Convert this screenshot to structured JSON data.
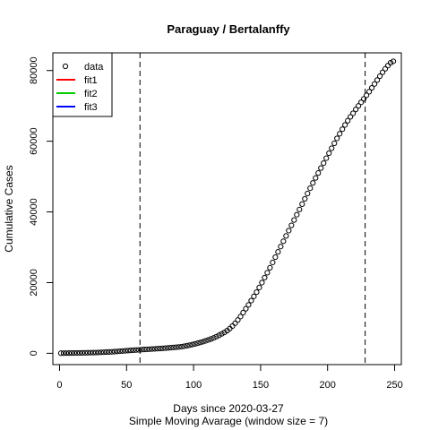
{
  "chart_data": {
    "type": "scatter",
    "title": "Paraguay / Bertalanffy",
    "xlabel": "Days since 2020-03-27",
    "subtitle": "Simple Moving Avarage (window size = 7)",
    "ylabel": "Cumulative Cases",
    "xlim": [
      -5,
      255
    ],
    "ylim": [
      -3200,
      85000
    ],
    "xticks": [
      0,
      50,
      100,
      150,
      200,
      250
    ],
    "yticks": [
      0,
      20000,
      40000,
      60000,
      80000
    ],
    "xtick_labels": [
      "0",
      "50",
      "100",
      "150",
      "200",
      "250"
    ],
    "ytick_labels": [
      "0",
      "20000",
      "40000",
      "60000",
      "80000"
    ],
    "vlines": [
      60,
      228
    ],
    "grid": false,
    "legend": {
      "position": "top-left",
      "entries": [
        {
          "label": "data",
          "symbol": "circle",
          "color": "#000000"
        },
        {
          "label": "fit1",
          "symbol": "line",
          "color": "#ff0000"
        },
        {
          "label": "fit2",
          "symbol": "line",
          "color": "#00cc00"
        },
        {
          "label": "fit3",
          "symbol": "line",
          "color": "#0000ff"
        }
      ]
    },
    "series": [
      {
        "name": "data",
        "x": [
          1,
          3,
          5,
          7,
          9,
          11,
          13,
          15,
          17,
          19,
          21,
          23,
          25,
          27,
          29,
          31,
          33,
          35,
          37,
          39,
          41,
          43,
          45,
          47,
          49,
          51,
          53,
          55,
          57,
          59,
          61,
          63,
          65,
          67,
          69,
          71,
          73,
          75,
          77,
          79,
          81,
          83,
          85,
          87,
          89,
          91,
          93,
          95,
          97,
          99,
          101,
          103,
          105,
          107,
          109,
          111,
          113,
          115,
          117,
          119,
          121,
          123,
          125,
          127,
          129,
          131,
          133,
          135,
          137,
          139,
          141,
          143,
          145,
          147,
          149,
          151,
          153,
          155,
          157,
          159,
          161,
          163,
          165,
          167,
          169,
          171,
          173,
          175,
          177,
          179,
          181,
          183,
          185,
          187,
          189,
          191,
          193,
          195,
          197,
          199,
          201,
          203,
          205,
          207,
          209,
          211,
          213,
          215,
          217,
          219,
          221,
          223,
          225,
          227,
          229,
          231,
          233,
          235,
          237,
          239,
          241,
          243,
          245,
          247,
          249
        ],
        "y": [
          30,
          40,
          50,
          60,
          80,
          90,
          100,
          110,
          120,
          130,
          150,
          170,
          190,
          210,
          240,
          270,
          300,
          340,
          380,
          420,
          470,
          520,
          580,
          640,
          700,
          760,
          820,
          870,
          920,
          970,
          1020,
          1070,
          1110,
          1160,
          1210,
          1250,
          1300,
          1350,
          1400,
          1460,
          1520,
          1590,
          1650,
          1720,
          1780,
          1880,
          2000,
          2150,
          2300,
          2470,
          2650,
          2850,
          3060,
          3280,
          3520,
          3780,
          4050,
          4350,
          4700,
          5100,
          5500,
          5900,
          6400,
          7000,
          7700,
          8500,
          9400,
          10400,
          11500,
          12600,
          13700,
          14900,
          16100,
          17300,
          18600,
          20000,
          21400,
          22800,
          24200,
          25700,
          27200,
          28700,
          30200,
          31700,
          33200,
          34700,
          36200,
          37700,
          39200,
          40700,
          42200,
          43700,
          45200,
          46700,
          48200,
          49600,
          51000,
          52400,
          53800,
          55200,
          56600,
          58000,
          59400,
          60800,
          62100,
          63400,
          64600,
          65800,
          66900,
          67900,
          69000,
          70000,
          71000,
          72000,
          73000,
          74000,
          75100,
          76200,
          77300,
          78400,
          79500,
          80500,
          81400,
          82200,
          82600
        ]
      }
    ]
  }
}
